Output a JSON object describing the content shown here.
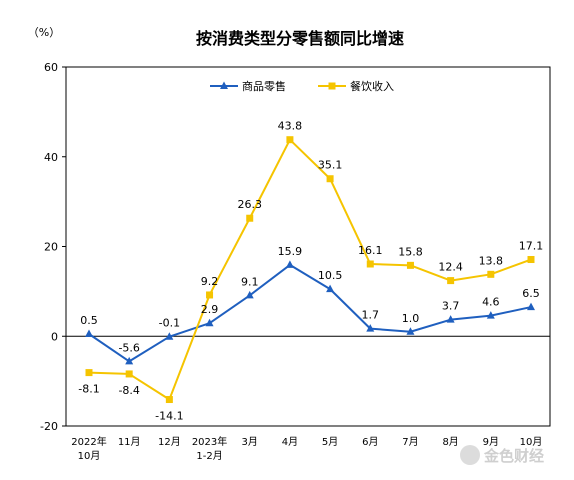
{
  "chart_data": {
    "type": "line",
    "title": "按消费类型分零售额同比增速",
    "y_unit": "（%）",
    "ylim": [
      -20,
      60
    ],
    "yticks": [
      -20,
      0,
      20,
      40,
      60
    ],
    "x_categories": [
      [
        "2022年",
        "10月"
      ],
      [
        "11月"
      ],
      [
        "12月"
      ],
      [
        "2023年",
        "1-2月"
      ],
      [
        "3月"
      ],
      [
        "4月"
      ],
      [
        "5月"
      ],
      [
        "6月"
      ],
      [
        "7月"
      ],
      [
        "8月"
      ],
      [
        "9月"
      ],
      [
        "10月"
      ]
    ],
    "legend_position": "top-center",
    "grid": false,
    "series": [
      {
        "name": "商品零售",
        "color": "#1f5fbf",
        "marker": "triangle",
        "values": [
          0.5,
          -5.6,
          -0.1,
          2.9,
          9.1,
          15.9,
          10.5,
          1.7,
          1.0,
          3.7,
          4.6,
          6.5
        ],
        "labels": [
          "0.5",
          "-5.6",
          "-0.1",
          "2.9",
          "9.1",
          "15.9",
          "10.5",
          "1.7",
          "1.0",
          "3.7",
          "4.6",
          "6.5"
        ]
      },
      {
        "name": "餐饮收入",
        "color": "#f5c400",
        "marker": "square",
        "values": [
          -8.1,
          -8.4,
          -14.1,
          9.2,
          26.3,
          43.8,
          35.1,
          16.1,
          15.8,
          12.4,
          13.8,
          17.1
        ],
        "labels": [
          "-8.1",
          "-8.4",
          "-14.1",
          "9.2",
          "26.3",
          "43.8",
          "35.1",
          "16.1",
          "15.8",
          "12.4",
          "13.8",
          "17.1"
        ]
      }
    ],
    "watermark": "金色财经"
  }
}
